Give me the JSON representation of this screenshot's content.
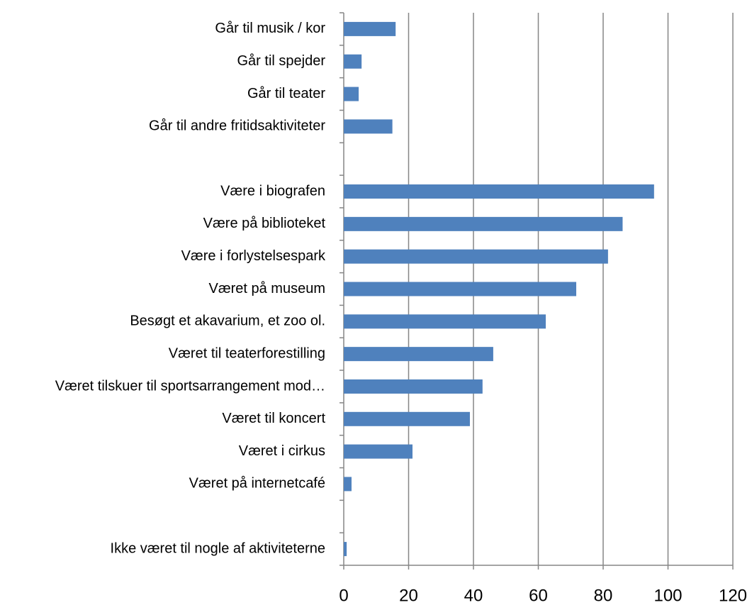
{
  "chart_data": {
    "type": "bar",
    "orientation": "horizontal",
    "categories": [
      "Går til musik / kor",
      "Går til spejder",
      "Går til teater",
      "Går til andre fritidsaktiviteter",
      null,
      "Være i biografen",
      "Være på biblioteket",
      "Være i forlystelsespark",
      "Været på museum",
      "Besøgt et akavarium, et zoo ol.",
      "Været til teaterforestilling",
      "Været tilskuer til sportsarrangement mod…",
      "Været til koncert",
      "Været i cirkus",
      "Været på internetcafé",
      null,
      "Ikke været til nogle af aktiviteterne"
    ],
    "values": [
      16,
      5.5,
      4.6,
      15,
      null,
      95.7,
      86,
      81.5,
      71.7,
      62.3,
      46.1,
      42.8,
      38.9,
      21.2,
      2.4,
      null,
      0.9
    ],
    "color": "#4f81bd",
    "xlim": [
      0,
      120
    ],
    "xticks": [
      0,
      20,
      40,
      60,
      80,
      100,
      120
    ],
    "grid": true
  }
}
